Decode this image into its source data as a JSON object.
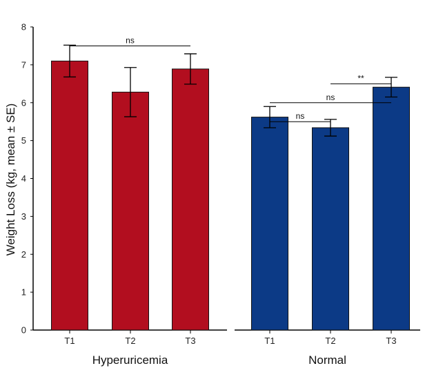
{
  "chart_data": {
    "type": "bar",
    "ylabel": "Weight Loss (kg, mean ± SE)",
    "ylim": [
      0,
      8
    ],
    "yticks": [
      "0",
      "1",
      "2",
      "3",
      "4",
      "5",
      "6",
      "7",
      "8"
    ],
    "grid": false,
    "groups": [
      {
        "name": "Hyperuricemia",
        "color": "#B20E1F",
        "categories": [
          "T1",
          "T2",
          "T3"
        ],
        "values": [
          7.1,
          6.28,
          6.89
        ],
        "errors": [
          0.42,
          0.65,
          0.4
        ],
        "comparisons": [
          {
            "from": 0,
            "to": 2,
            "label": "ns",
            "y": 7.5
          }
        ]
      },
      {
        "name": "Normal",
        "color": "#0C3A86",
        "categories": [
          "T1",
          "T2",
          "T3"
        ],
        "values": [
          5.62,
          5.34,
          6.41
        ],
        "errors": [
          0.28,
          0.22,
          0.26
        ],
        "comparisons": [
          {
            "from": 0,
            "to": 1,
            "label": "ns",
            "y": 5.5
          },
          {
            "from": 0,
            "to": 2,
            "label": "ns",
            "y": 6.0
          },
          {
            "from": 1,
            "to": 2,
            "label": "**",
            "y": 6.5
          }
        ]
      }
    ]
  }
}
